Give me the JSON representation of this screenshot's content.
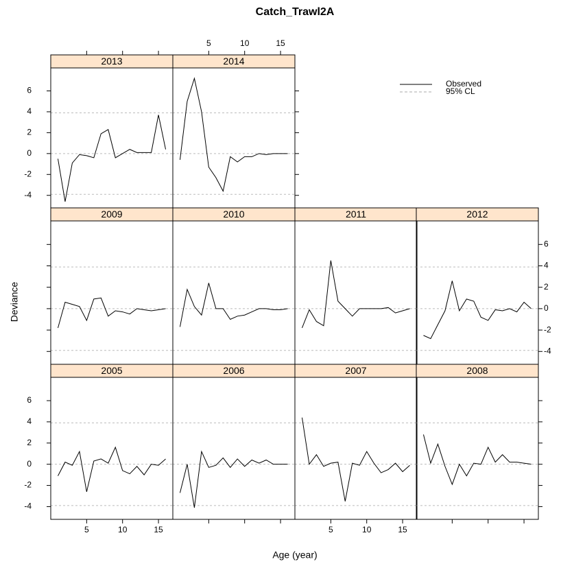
{
  "title": "Catch_Trawl2A",
  "x_label": "Age (year)",
  "y_label": "Deviance",
  "legend": [
    {
      "name": "Observed",
      "style": "solid"
    },
    {
      "name": "95% CL",
      "style": "dashed"
    }
  ],
  "cl_lines": [
    -3.9,
    0,
    3.9
  ],
  "chart_data": [
    {
      "type": "line",
      "title": "2013",
      "x": [
        1,
        2,
        3,
        4,
        5,
        6,
        7,
        8,
        9,
        10,
        11,
        12,
        13,
        14,
        15,
        16
      ],
      "values": [
        -0.5,
        -4.6,
        -0.9,
        -0.1,
        -0.2,
        -0.4,
        1.9,
        2.3,
        -0.4,
        0,
        0.4,
        0.1,
        0.1,
        0.1,
        3.7,
        0.4
      ],
      "xlim": [
        0,
        17
      ],
      "ylim": [
        -5.2,
        8.2
      ],
      "xticks": [
        5,
        10,
        15
      ],
      "yticks": [
        -4,
        -2,
        0,
        2,
        4,
        6
      ]
    },
    {
      "type": "line",
      "title": "2014",
      "x": [
        1,
        2,
        3,
        4,
        5,
        6,
        7,
        8,
        9,
        10,
        11,
        12,
        13,
        14,
        15,
        16
      ],
      "values": [
        -0.6,
        5.0,
        7.2,
        4.0,
        -1.3,
        -2.3,
        -3.6,
        -0.3,
        -0.8,
        -0.3,
        -0.3,
        0,
        -0.1,
        0,
        0,
        0
      ],
      "xlim": [
        0,
        17
      ],
      "ylim": [
        -5.2,
        8.2
      ],
      "xticks": [
        5,
        10,
        15
      ],
      "yticks": [
        -4,
        -2,
        0,
        2,
        4,
        6
      ]
    },
    {
      "type": "line",
      "title": "2009",
      "x": [
        1,
        2,
        3,
        4,
        5,
        6,
        7,
        8,
        9,
        10,
        11,
        12,
        13,
        14,
        15,
        16
      ],
      "values": [
        -1.8,
        0.6,
        0.4,
        0.2,
        -1.1,
        0.9,
        1.0,
        -0.7,
        -0.2,
        -0.3,
        -0.5,
        0,
        -0.1,
        -0.2,
        -0.1,
        0
      ],
      "xlim": [
        0,
        17
      ],
      "ylim": [
        -5.2,
        8.2
      ],
      "xticks": [
        5,
        10,
        15
      ],
      "yticks": [
        -4,
        -2,
        0,
        2,
        4,
        6
      ]
    },
    {
      "type": "line",
      "title": "2010",
      "x": [
        1,
        2,
        3,
        4,
        5,
        6,
        7,
        8,
        9,
        10,
        11,
        12,
        13,
        14,
        15,
        16
      ],
      "values": [
        -1.7,
        1.8,
        0.2,
        -0.6,
        2.4,
        0,
        0,
        -1.0,
        -0.7,
        -0.6,
        -0.3,
        0,
        0,
        -0.1,
        -0.1,
        0
      ],
      "xlim": [
        0,
        17
      ],
      "ylim": [
        -5.2,
        8.2
      ],
      "xticks": [
        5,
        10,
        15
      ],
      "yticks": [
        -4,
        -2,
        0,
        2,
        4,
        6
      ]
    },
    {
      "type": "line",
      "title": "2011",
      "x": [
        1,
        2,
        3,
        4,
        5,
        6,
        7,
        8,
        9,
        10,
        11,
        12,
        13,
        14,
        15,
        16
      ],
      "values": [
        -1.8,
        -0.1,
        -1.2,
        -1.6,
        4.5,
        0.7,
        0,
        -0.7,
        0,
        0,
        0,
        0,
        0.1,
        -0.4,
        -0.2,
        0
      ],
      "xlim": [
        0,
        17
      ],
      "ylim": [
        -5.2,
        8.2
      ],
      "xticks": [
        5,
        10,
        15
      ],
      "yticks": [
        -4,
        -2,
        0,
        2,
        4,
        6
      ]
    },
    {
      "type": "line",
      "title": "2012",
      "x": [
        1,
        2,
        3,
        4,
        5,
        6,
        7,
        8,
        9,
        10,
        11,
        12,
        13,
        14,
        15,
        16
      ],
      "values": [
        -2.5,
        -2.8,
        -1.5,
        -0.2,
        2.6,
        -0.2,
        0.9,
        0.7,
        -0.8,
        -1.1,
        -0.1,
        -0.2,
        0,
        -0.3,
        0.6,
        0
      ],
      "xlim": [
        0,
        17
      ],
      "ylim": [
        -5.2,
        8.2
      ],
      "xticks": [
        5,
        10,
        15
      ],
      "yticks": [
        -4,
        -2,
        0,
        2,
        4,
        6
      ]
    },
    {
      "type": "line",
      "title": "2005",
      "x": [
        1,
        2,
        3,
        4,
        5,
        6,
        7,
        8,
        9,
        10,
        11,
        12,
        13,
        14,
        15,
        16
      ],
      "values": [
        -1.1,
        0.2,
        -0.1,
        1.2,
        -2.6,
        0.3,
        0.5,
        0.1,
        1.6,
        -0.6,
        -0.9,
        -0.2,
        -1.0,
        0,
        -0.1,
        0.5
      ],
      "xlim": [
        0,
        17
      ],
      "ylim": [
        -5.2,
        8.2
      ],
      "xticks": [
        5,
        10,
        15
      ],
      "yticks": [
        -4,
        -2,
        0,
        2,
        4,
        6
      ]
    },
    {
      "type": "line",
      "title": "2006",
      "x": [
        1,
        2,
        3,
        4,
        5,
        6,
        7,
        8,
        9,
        10,
        11,
        12,
        13,
        14,
        15,
        16
      ],
      "values": [
        -2.7,
        0,
        -4.1,
        1.2,
        -0.3,
        -0.1,
        0.6,
        -0.3,
        0.5,
        -0.2,
        0.4,
        0.1,
        0.4,
        0,
        0,
        0
      ],
      "xlim": [
        0,
        17
      ],
      "ylim": [
        -5.2,
        8.2
      ],
      "xticks": [
        5,
        10,
        15
      ],
      "yticks": [
        -4,
        -2,
        0,
        2,
        4,
        6
      ]
    },
    {
      "type": "line",
      "title": "2007",
      "x": [
        1,
        2,
        3,
        4,
        5,
        6,
        7,
        8,
        9,
        10,
        11,
        12,
        13,
        14,
        15,
        16
      ],
      "values": [
        4.4,
        0,
        0.9,
        -0.2,
        0.1,
        0.2,
        -3.5,
        0.1,
        -0.1,
        1.2,
        0.1,
        -0.8,
        -0.5,
        0.1,
        -0.7,
        -0.1
      ],
      "xlim": [
        0,
        17
      ],
      "ylim": [
        -5.2,
        8.2
      ],
      "xticks": [
        5,
        10,
        15
      ],
      "yticks": [
        -4,
        -2,
        0,
        2,
        4,
        6
      ]
    },
    {
      "type": "line",
      "title": "2008",
      "x": [
        1,
        2,
        3,
        4,
        5,
        6,
        7,
        8,
        9,
        10,
        11,
        12,
        13,
        14,
        15,
        16
      ],
      "values": [
        2.8,
        0.1,
        1.9,
        -0.2,
        -1.9,
        0,
        -1.1,
        0.1,
        0,
        1.6,
        0.2,
        0.9,
        0.2,
        0.2,
        0.1,
        0
      ],
      "xlim": [
        0,
        17
      ],
      "ylim": [
        -5.2,
        8.2
      ],
      "xticks": [
        5,
        10,
        15
      ],
      "yticks": [
        -4,
        -2,
        0,
        2,
        4,
        6
      ]
    }
  ]
}
